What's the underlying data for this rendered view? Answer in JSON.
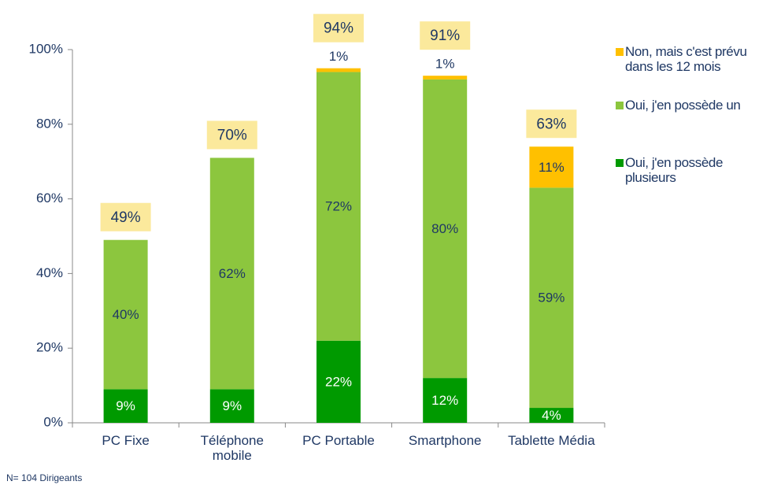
{
  "chart_data": {
    "type": "stacked_bar",
    "categories": [
      "PC Fixe",
      "Téléphone mobile",
      "PC Portable",
      "Smartphone",
      "Tablette Média"
    ],
    "series": [
      {
        "name": "Oui, j'en possède plusieurs",
        "color": "#009a00",
        "values": [
          9,
          9,
          22,
          12,
          4
        ],
        "value_labels": [
          "9%",
          "9%",
          "22%",
          "12%",
          "4%"
        ]
      },
      {
        "name": "Oui, j'en possède un",
        "color": "#8cc63e",
        "values": [
          40,
          62,
          72,
          80,
          59
        ],
        "value_labels": [
          "40%",
          "62%",
          "72%",
          "80%",
          "59%"
        ]
      },
      {
        "name": "Non, mais c'est prévu dans les 12 mois",
        "color": "#ffc000",
        "values": [
          null,
          null,
          1,
          1,
          11
        ],
        "value_labels": [
          null,
          null,
          "1%",
          "1%",
          "11%"
        ]
      }
    ],
    "totals": {
      "values": [
        49,
        70,
        94,
        91,
        63
      ],
      "value_labels": [
        "49%",
        "70%",
        "94%",
        "91%",
        "63%"
      ],
      "color": "#fbe99c"
    },
    "ylim": [
      0,
      100
    ],
    "yticks": [
      {
        "value": 0,
        "label": "0%"
      },
      {
        "value": 20,
        "label": "20%"
      },
      {
        "value": 40,
        "label": "40%"
      },
      {
        "value": 60,
        "label": "60%"
      },
      {
        "value": 80,
        "label": "80%"
      },
      {
        "value": 100,
        "label": "100%"
      }
    ],
    "legend": "right",
    "footnote": "N= 104 Dirigeants"
  }
}
